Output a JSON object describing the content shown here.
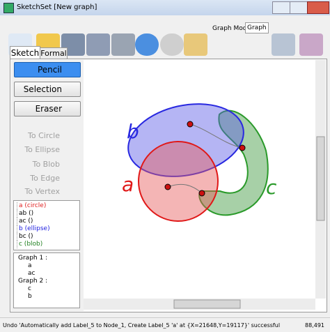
{
  "window": {
    "title": "SketchSet [New graph]"
  },
  "toolbar": {
    "graph_mode_label": "Graph Mode:",
    "graph_mode_value": "Graph"
  },
  "tabs": [
    "Sketch",
    "Formal"
  ],
  "tools": [
    "Pencil",
    "Selection",
    "Eraser"
  ],
  "convert_buttons": [
    "To Circle",
    "To Ellipse",
    "To Blob",
    "To Edge",
    "To Vertex"
  ],
  "items": [
    {
      "text": "a (circle)",
      "color": "#e02020"
    },
    {
      "text": "ab ()",
      "color": "#000000"
    },
    {
      "text": "ac ()",
      "color": "#000000"
    },
    {
      "text": "b (ellipse)",
      "color": "#2020e0"
    },
    {
      "text": "bc ()",
      "color": "#000000"
    },
    {
      "text": "c (blob)",
      "color": "#208020"
    }
  ],
  "tree": [
    {
      "label": "Graph 1 :",
      "children": [
        "a",
        "ac"
      ]
    },
    {
      "label": "Graph 2 :",
      "children": [
        "c",
        "b"
      ]
    }
  ],
  "canvas": {
    "labels": [
      "b",
      "a",
      "c"
    ]
  },
  "status": {
    "message": "Undo 'Automatically add Label_5 to Node_1, Create Label_5 'a' at {X=21648,Y=19117}' successful",
    "coords": "88,491"
  }
}
